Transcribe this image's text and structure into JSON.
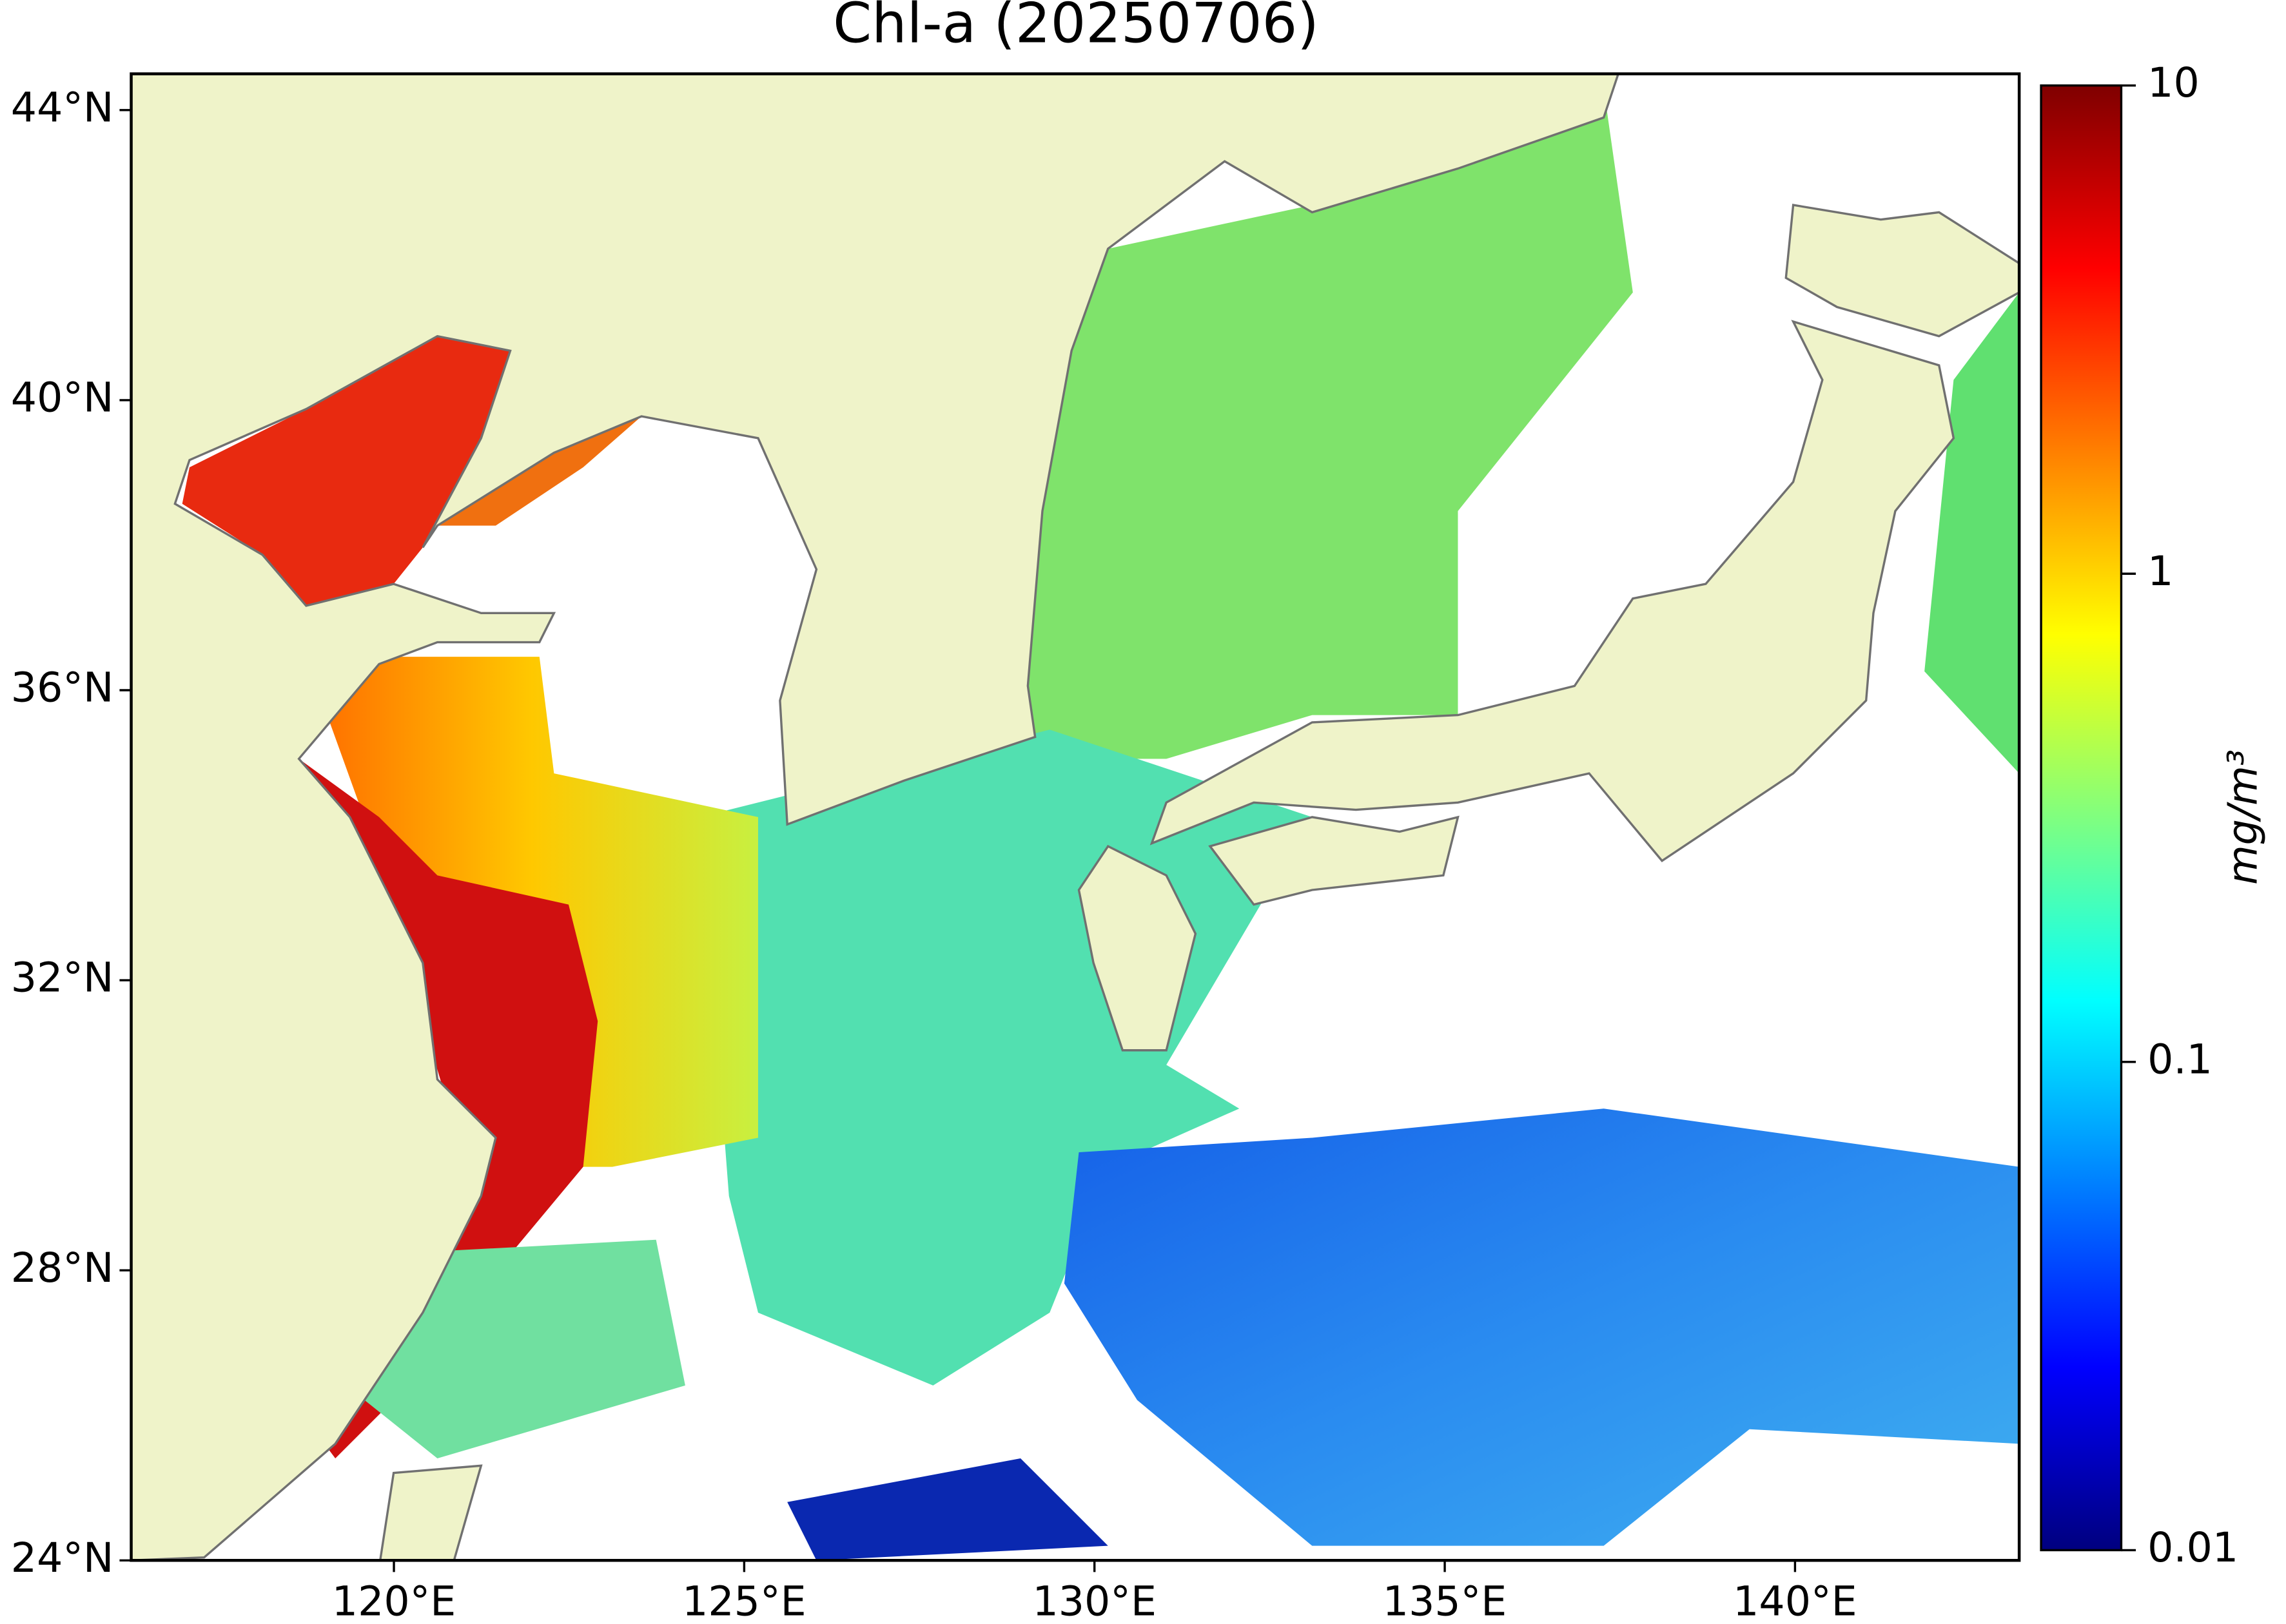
{
  "title": "Chl-a (20250706)",
  "map": {
    "xlim": [
      116.25,
      143.2
    ],
    "ylim": [
      24,
      44.5
    ],
    "xticks": [
      {
        "value": 120,
        "label": "120°E"
      },
      {
        "value": 125,
        "label": "125°E"
      },
      {
        "value": 130,
        "label": "130°E"
      },
      {
        "value": 135,
        "label": "135°E"
      },
      {
        "value": 140,
        "label": "140°E"
      }
    ],
    "yticks": [
      {
        "value": 24,
        "label": "24°N"
      },
      {
        "value": 28,
        "label": "28°N"
      },
      {
        "value": 32,
        "label": "32°N"
      },
      {
        "value": 36,
        "label": "36°N"
      },
      {
        "value": 40,
        "label": "40°N"
      },
      {
        "value": 44,
        "label": "44°N"
      }
    ]
  },
  "colorbar": {
    "label": "mg/m³",
    "scale": "log",
    "lim": [
      0.01,
      10
    ],
    "ticks": [
      0.01,
      0.1,
      1,
      10
    ],
    "colormap": "jet"
  }
}
